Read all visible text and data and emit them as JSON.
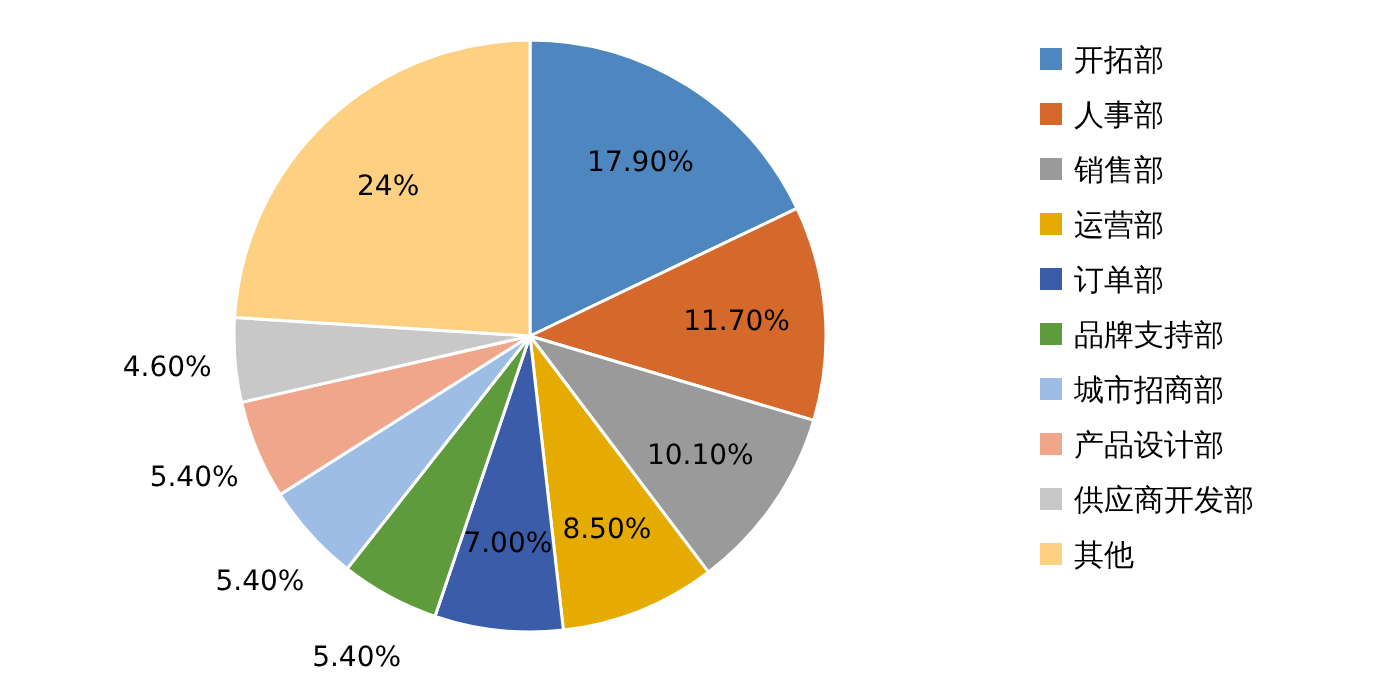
{
  "chart_data": {
    "type": "pie",
    "categories": [
      "开拓部",
      "人事部",
      "销售部",
      "运营部",
      "订单部",
      "品牌支持部",
      "城市招商部",
      "产品设计部",
      "供应商开发部",
      "其他"
    ],
    "values": [
      17.9,
      11.7,
      10.1,
      8.5,
      7.0,
      5.4,
      5.4,
      5.4,
      4.6,
      24
    ],
    "value_labels": [
      "17.90%",
      "11.70%",
      "10.10%",
      "8.50%",
      "7.00%",
      "5.40%",
      "5.40%",
      "5.40%",
      "4.60%",
      "24%"
    ],
    "colors": [
      "#4e86c0",
      "#d4692b",
      "#9a9a9a",
      "#e5ab00",
      "#3b5da9",
      "#5e9b3d",
      "#9dbde4",
      "#f0a68b",
      "#c8c8c8",
      "#fdd082"
    ],
    "legend": "right"
  }
}
